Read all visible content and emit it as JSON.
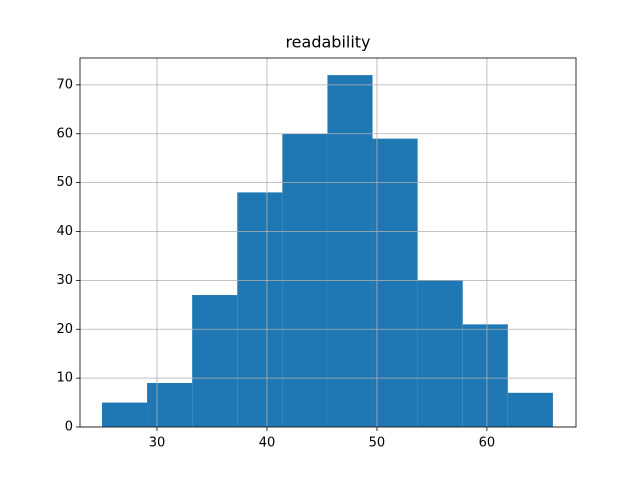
{
  "chart_data": {
    "type": "histogram",
    "title": "readability",
    "bins": [
      25,
      29.1,
      33.2,
      37.3,
      41.4,
      45.5,
      49.6,
      53.7,
      57.8,
      61.9,
      66
    ],
    "values": [
      5,
      9,
      27,
      48,
      60,
      72,
      59,
      30,
      21,
      7
    ],
    "color": "#1f77b4",
    "xlim": [
      23,
      68.1
    ],
    "xticks": [
      30,
      40,
      50,
      60
    ],
    "ylim": [
      0,
      75.5
    ],
    "yticks": [
      0,
      10,
      20,
      30,
      40,
      50,
      60,
      70
    ],
    "grid": true
  }
}
